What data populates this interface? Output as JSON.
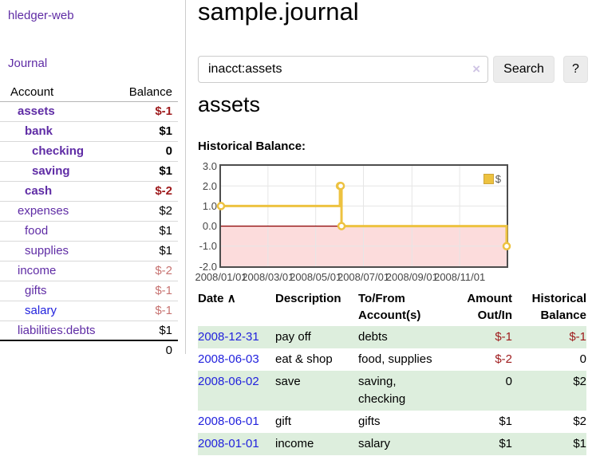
{
  "app": {
    "title": "hledger-web"
  },
  "theme": {
    "link_purple": "#5f2ca5",
    "link_blue": "#2222dd",
    "negative_dark": "#9e1a1c",
    "negative_soft": "#c77371",
    "row_green": "#ddeedd",
    "chart_line": "#edc240"
  },
  "sidebar": {
    "journal_link": "Journal",
    "table": {
      "headers": [
        "Account",
        "Balance"
      ],
      "rows": [
        {
          "name": "assets",
          "balance": "$-1",
          "level": 1,
          "emph": true,
          "balance_style": "negdark"
        },
        {
          "name": "bank",
          "balance": "$1",
          "level": 2,
          "emph": true,
          "balance_style": "plain"
        },
        {
          "name": "checking",
          "balance": "0",
          "level": 3,
          "emph": true,
          "balance_style": "plain"
        },
        {
          "name": "saving",
          "balance": "$1",
          "level": 3,
          "emph": true,
          "balance_style": "plain"
        },
        {
          "name": "cash",
          "balance": "$-2",
          "level": 2,
          "emph": true,
          "balance_style": "negdark"
        },
        {
          "name": "expenses",
          "balance": "$2",
          "level": 1,
          "emph": false,
          "balance_style": "plain"
        },
        {
          "name": "food",
          "balance": "$1",
          "level": 2,
          "emph": false,
          "balance_style": "plain"
        },
        {
          "name": "supplies",
          "balance": "$1",
          "level": 2,
          "emph": false,
          "balance_style": "plain"
        },
        {
          "name": "income",
          "balance": "$-2",
          "level": 1,
          "emph": false,
          "balance_style": "negsoft"
        },
        {
          "name": "gifts",
          "balance": "$-1",
          "level": 2,
          "emph": false,
          "balance_style": "negsoft"
        },
        {
          "name": "salary",
          "balance": "$-1",
          "level": 2,
          "emph": false,
          "balance_style": "negsoft",
          "link_color": "blue"
        },
        {
          "name": "liabilities:debts",
          "balance": "$1",
          "level": 1,
          "emph": false,
          "balance_style": "plain"
        }
      ],
      "total": "0"
    }
  },
  "main": {
    "title": "sample.journal",
    "search": {
      "value": "inacct:assets",
      "clear_icon": "×",
      "button": "Search",
      "help_button": "?"
    },
    "account_heading": "assets",
    "chart_heading": "Historical Balance:"
  },
  "chart_data": {
    "type": "line",
    "style": "step",
    "title": "Historical Balance",
    "ylim": [
      -2.0,
      3.0
    ],
    "x_range": [
      "2008-01-01",
      "2008-12-31"
    ],
    "yticks": [
      "3.0",
      "2.0",
      "1.0",
      "0.0",
      "-1.0",
      "-2.0"
    ],
    "xticks": [
      "2008/01/01",
      "2008/03/01",
      "2008/05/01",
      "2008/07/01",
      "2008/09/01",
      "2008/11/01"
    ],
    "series": [
      {
        "name": "$",
        "color": "#edc240",
        "points": [
          [
            "2008-01-01",
            1
          ],
          [
            "2008-06-01",
            2
          ],
          [
            "2008-06-02",
            2
          ],
          [
            "2008-06-03",
            0
          ],
          [
            "2008-12-31",
            -1
          ]
        ]
      }
    ],
    "negative_fill": "#fcdcdc",
    "zero_line": "#8b0000",
    "grid": true,
    "legend_position": "top-right"
  },
  "register": {
    "headers": {
      "date": "Date",
      "sort_icon": "∧",
      "description": "Description",
      "tofrom": "To/From Account(s)",
      "amount": "Amount Out/In",
      "historical": "Historical Balance"
    },
    "rows": [
      {
        "date": "2008-12-31",
        "description": "pay off",
        "accounts": "debts",
        "amount": "$-1",
        "balance": "$-1"
      },
      {
        "date": "2008-06-03",
        "description": "eat & shop",
        "accounts": "food, supplies",
        "amount": "$-2",
        "balance": "0"
      },
      {
        "date": "2008-06-02",
        "description": "save",
        "accounts": "saving, checking",
        "amount": "0",
        "balance": "$2"
      },
      {
        "date": "2008-06-01",
        "description": "gift",
        "accounts": "gifts",
        "amount": "$1",
        "balance": "$2"
      },
      {
        "date": "2008-01-01",
        "description": "income",
        "accounts": "salary",
        "amount": "$1",
        "balance": "$1"
      }
    ]
  }
}
